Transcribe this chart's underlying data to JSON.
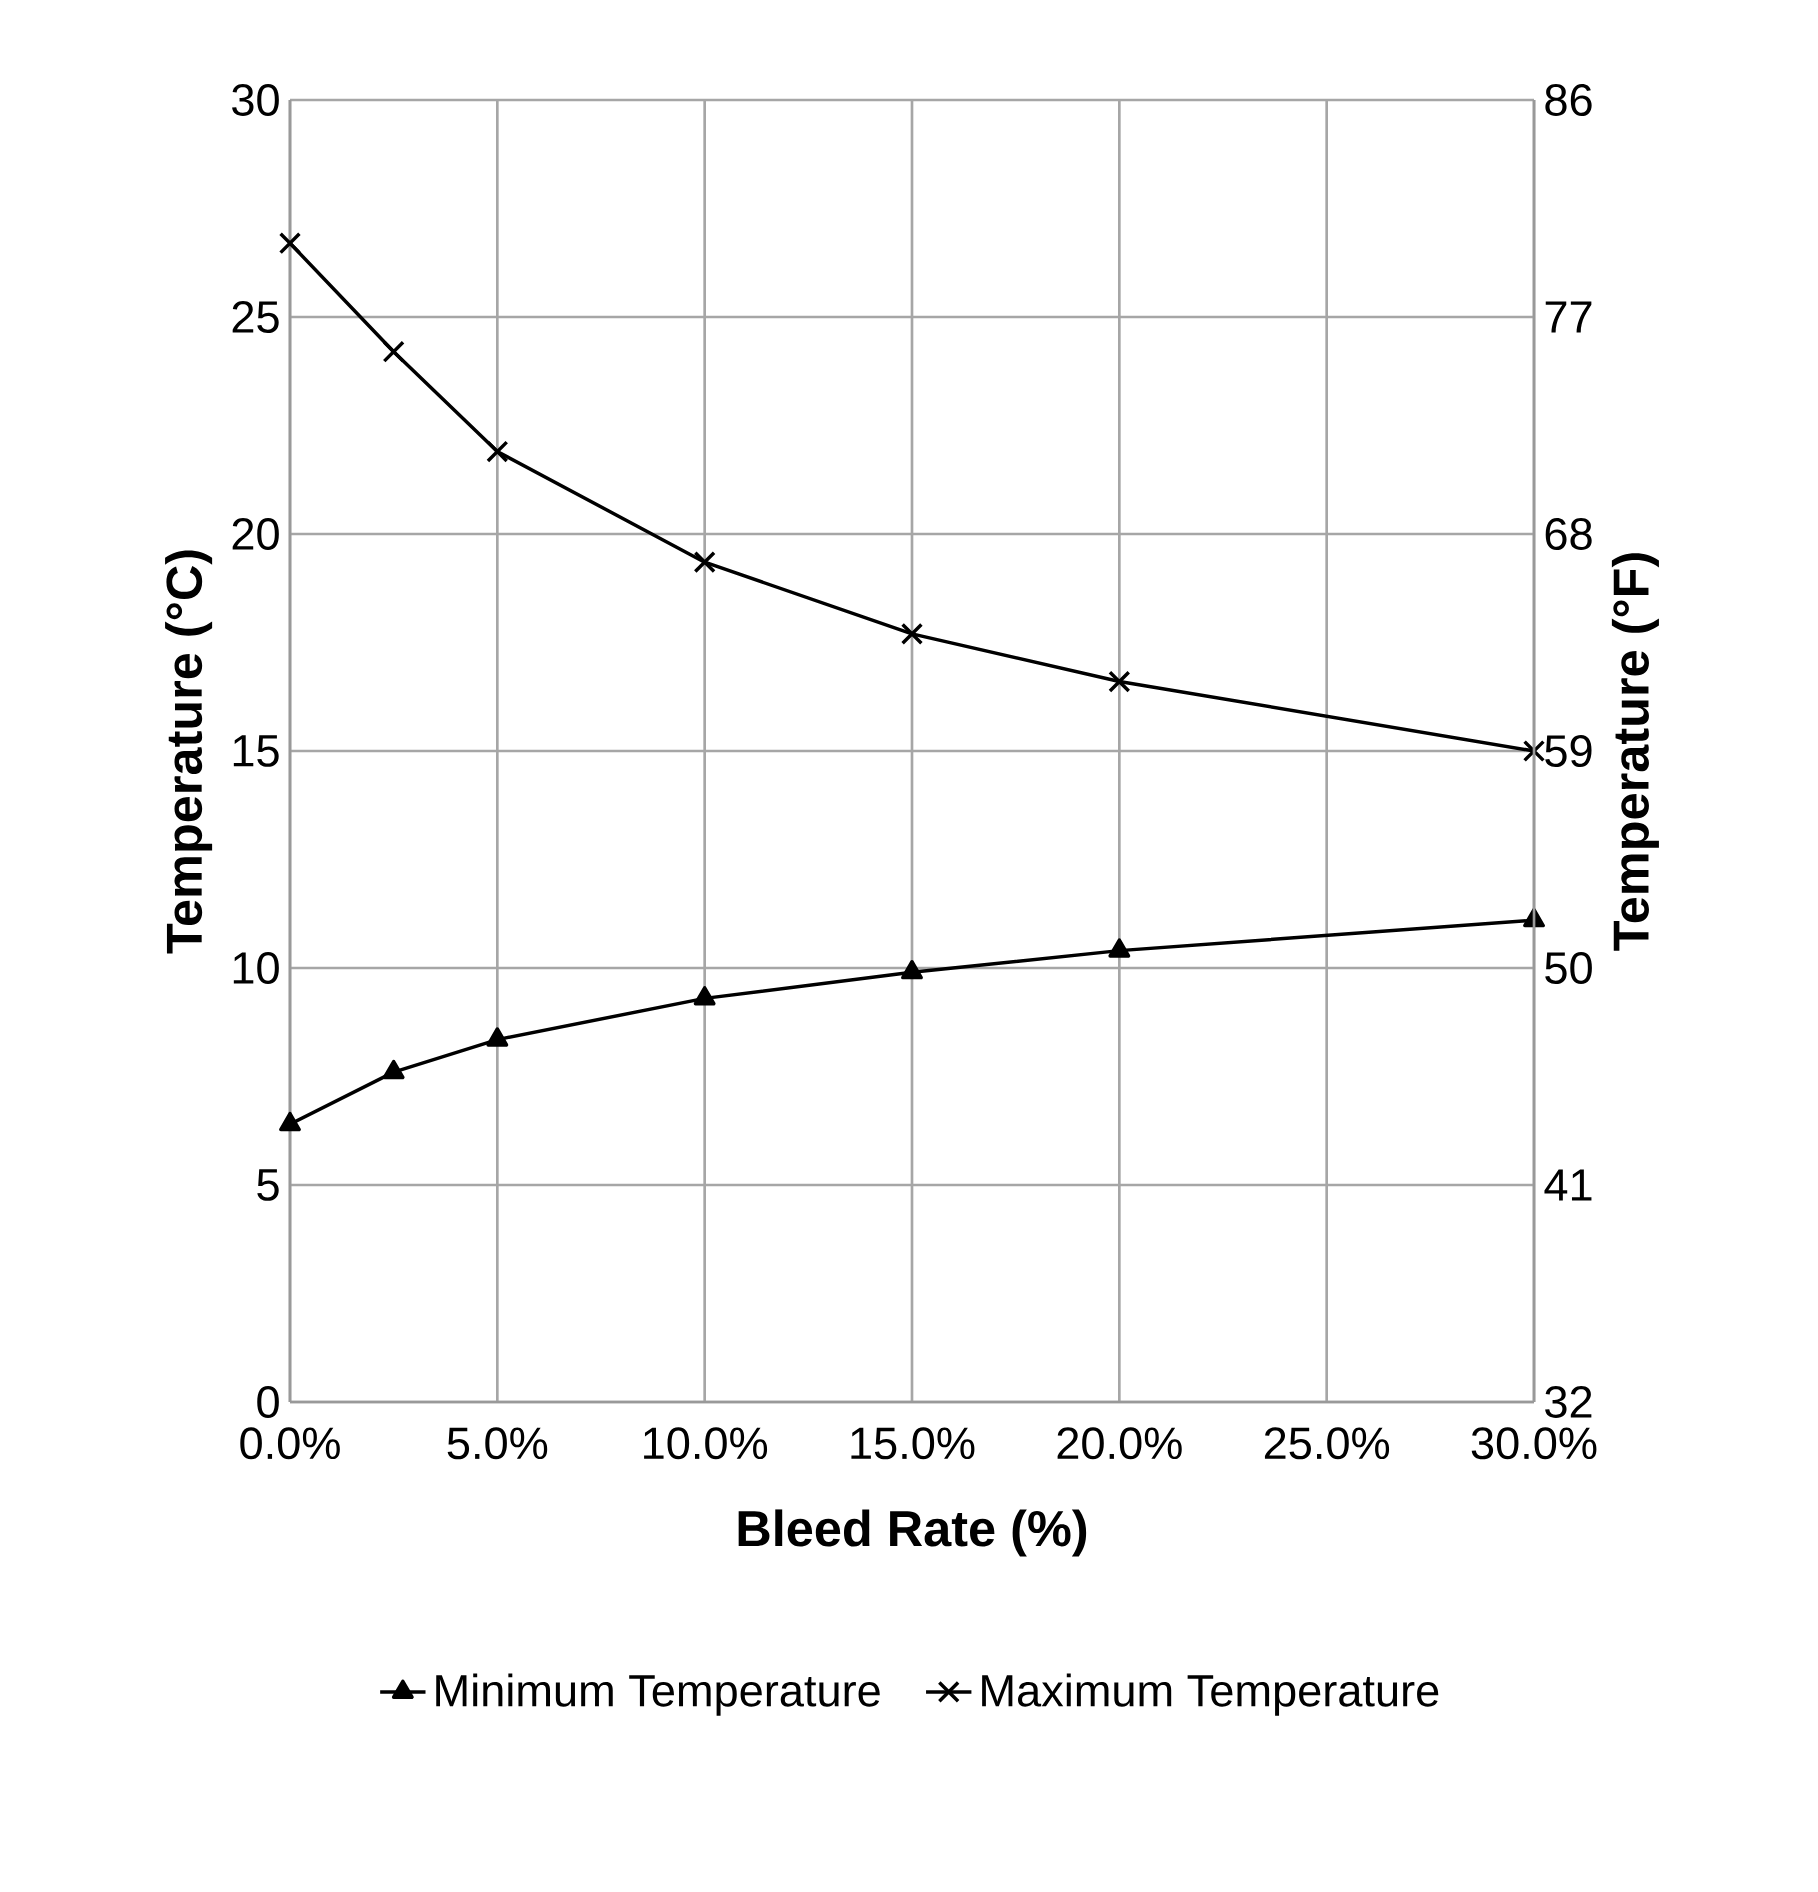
{
  "chart_data": {
    "type": "line",
    "xlabel": "Bleed Rate (%)",
    "ylabel": "Temperature (°C)",
    "y2label": "Temperature (°F)",
    "x": [
      0,
      2.5,
      5,
      10,
      15,
      20,
      30
    ],
    "xlim": [
      0,
      30
    ],
    "xticks": [
      {
        "value": 0,
        "label": "0.0%"
      },
      {
        "value": 5,
        "label": "5.0%"
      },
      {
        "value": 10,
        "label": "10.0%"
      },
      {
        "value": 15,
        "label": "15.0%"
      },
      {
        "value": 20,
        "label": "20.0%"
      },
      {
        "value": 25,
        "label": "25.0%"
      },
      {
        "value": 30,
        "label": "30.0%"
      }
    ],
    "ylim": [
      0,
      30
    ],
    "yticks": [
      0,
      5,
      10,
      15,
      20,
      25,
      30
    ],
    "y2lim": [
      32,
      86
    ],
    "y2ticks": [
      32,
      41,
      50,
      59,
      68,
      77,
      86
    ],
    "grid": true,
    "legend": "bottom",
    "line_style": "solid",
    "series": [
      {
        "name": "Minimum Temperature",
        "color": "#000000",
        "marker": "triangle",
        "values": [
          6.4,
          7.6,
          8.35,
          9.3,
          9.9,
          10.4,
          11.1
        ]
      },
      {
        "name": "Maximum Temperature",
        "color": "#000000",
        "marker": "cross",
        "values": [
          26.7,
          24.2,
          21.9,
          19.35,
          17.7,
          16.6,
          15.0
        ]
      }
    ]
  }
}
